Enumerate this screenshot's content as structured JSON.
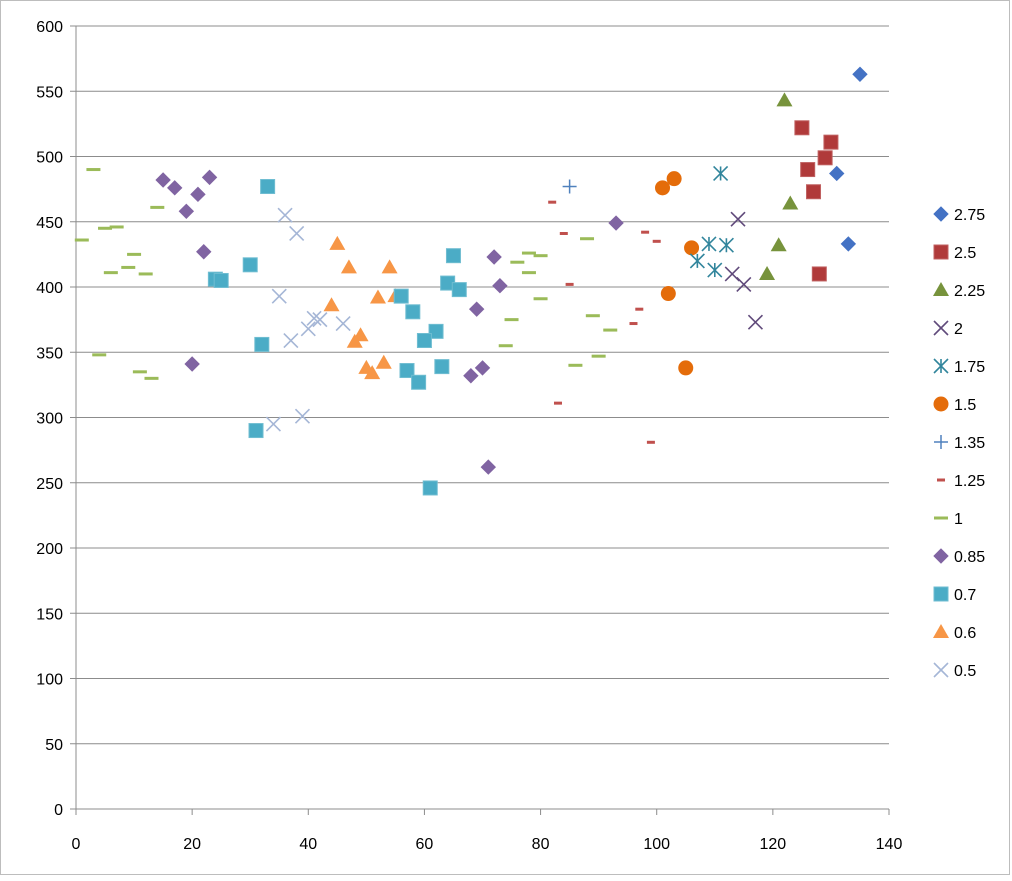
{
  "chart_data": {
    "type": "scatter",
    "title": "",
    "xlabel": "",
    "ylabel": "",
    "xlim": [
      0,
      140
    ],
    "ylim": [
      0,
      600
    ],
    "x_ticks": [
      0,
      20,
      40,
      60,
      80,
      100,
      120,
      140
    ],
    "y_ticks": [
      0,
      50,
      100,
      150,
      200,
      250,
      300,
      350,
      400,
      450,
      500,
      550,
      600
    ],
    "x_tick_labels": [
      "0",
      "20",
      "40",
      "60",
      "80",
      "100",
      "120",
      "140"
    ],
    "y_tick_labels": [
      "0",
      "50",
      "100",
      "150",
      "200",
      "250",
      "300",
      "350",
      "400",
      "450",
      "500",
      "550",
      "600"
    ],
    "grid": "horizontal",
    "legend_position": "right",
    "series": [
      {
        "name": "2.75",
        "marker": "diamond",
        "color": "#4472c4",
        "points": [
          [
            135,
            563
          ],
          [
            131,
            487
          ],
          [
            133,
            433
          ]
        ]
      },
      {
        "name": "2.5",
        "marker": "square",
        "color": "#b03a3a",
        "points": [
          [
            125,
            522
          ],
          [
            130,
            511
          ],
          [
            129,
            499
          ],
          [
            126,
            490
          ],
          [
            127,
            473
          ],
          [
            128,
            410
          ]
        ]
      },
      {
        "name": "2.25",
        "marker": "triangle",
        "color": "#77933c",
        "points": [
          [
            122,
            543
          ],
          [
            123,
            464
          ],
          [
            121,
            432
          ],
          [
            119,
            410
          ]
        ]
      },
      {
        "name": "2",
        "marker": "x",
        "color": "#604a7b",
        "points": [
          [
            114,
            452
          ],
          [
            113,
            410
          ],
          [
            115,
            402
          ],
          [
            117,
            373
          ]
        ]
      },
      {
        "name": "1.75",
        "marker": "asterisk",
        "color": "#31859c",
        "points": [
          [
            111,
            487
          ],
          [
            109,
            433
          ],
          [
            112,
            432
          ],
          [
            107,
            420
          ],
          [
            110,
            413
          ]
        ]
      },
      {
        "name": "1.5",
        "marker": "circle",
        "color": "#e46c0a",
        "points": [
          [
            103,
            483
          ],
          [
            101,
            476
          ],
          [
            106,
            430
          ],
          [
            102,
            395
          ],
          [
            105,
            338
          ]
        ]
      },
      {
        "name": "1.35",
        "marker": "plus",
        "color": "#4f81bd",
        "points": [
          [
            85,
            477
          ]
        ]
      },
      {
        "name": "1.25",
        "marker": "dash",
        "color": "#c0504d",
        "points": [
          [
            82,
            465
          ],
          [
            84,
            441
          ],
          [
            98,
            442
          ],
          [
            100,
            435
          ],
          [
            85,
            402
          ],
          [
            97,
            383
          ],
          [
            96,
            372
          ],
          [
            83,
            311
          ],
          [
            99,
            281
          ]
        ]
      },
      {
        "name": "1",
        "marker": "dash",
        "color": "#9bbb59",
        "points": [
          [
            3,
            490
          ],
          [
            14,
            461
          ],
          [
            1,
            436
          ],
          [
            5,
            445
          ],
          [
            7,
            446
          ],
          [
            10,
            425
          ],
          [
            9,
            415
          ],
          [
            6,
            411
          ],
          [
            12,
            410
          ],
          [
            4,
            348
          ],
          [
            11,
            335
          ],
          [
            13,
            330
          ],
          [
            78,
            426
          ],
          [
            80,
            424
          ],
          [
            76,
            419
          ],
          [
            78,
            411
          ],
          [
            88,
            437
          ],
          [
            80,
            391
          ],
          [
            75,
            375
          ],
          [
            74,
            355
          ],
          [
            89,
            378
          ],
          [
            92,
            367
          ],
          [
            86,
            340
          ],
          [
            90,
            347
          ]
        ]
      },
      {
        "name": "0.85",
        "marker": "diamond",
        "color": "#8064a2",
        "points": [
          [
            15,
            482
          ],
          [
            23,
            484
          ],
          [
            17,
            476
          ],
          [
            21,
            471
          ],
          [
            19,
            458
          ],
          [
            22,
            427
          ],
          [
            20,
            341
          ],
          [
            93,
            449
          ],
          [
            72,
            423
          ],
          [
            73,
            401
          ],
          [
            69,
            383
          ],
          [
            70,
            338
          ],
          [
            68,
            332
          ],
          [
            71,
            262
          ]
        ]
      },
      {
        "name": "0.7",
        "marker": "square",
        "color": "#4bacc6",
        "points": [
          [
            33,
            477
          ],
          [
            30,
            417
          ],
          [
            24,
            406
          ],
          [
            25,
            405
          ],
          [
            32,
            356
          ],
          [
            31,
            290
          ],
          [
            65,
            424
          ],
          [
            64,
            403
          ],
          [
            66,
            398
          ],
          [
            56,
            393
          ],
          [
            58,
            381
          ],
          [
            62,
            366
          ],
          [
            60,
            359
          ],
          [
            63,
            339
          ],
          [
            57,
            336
          ],
          [
            59,
            327
          ],
          [
            61,
            246
          ]
        ]
      },
      {
        "name": "0.6",
        "marker": "triangle",
        "color": "#f79646",
        "points": [
          [
            45,
            433
          ],
          [
            47,
            415
          ],
          [
            54,
            415
          ],
          [
            52,
            392
          ],
          [
            55,
            393
          ],
          [
            44,
            386
          ],
          [
            49,
            363
          ],
          [
            48,
            358
          ],
          [
            53,
            342
          ],
          [
            50,
            338
          ],
          [
            51,
            334
          ]
        ]
      },
      {
        "name": "0.5",
        "marker": "x",
        "color": "#a5b6d6",
        "points": [
          [
            36,
            455
          ],
          [
            38,
            441
          ],
          [
            35,
            393
          ],
          [
            42,
            375
          ],
          [
            41,
            376
          ],
          [
            46,
            372
          ],
          [
            40,
            368
          ],
          [
            37,
            359
          ],
          [
            39,
            301
          ],
          [
            34,
            295
          ]
        ]
      }
    ]
  }
}
